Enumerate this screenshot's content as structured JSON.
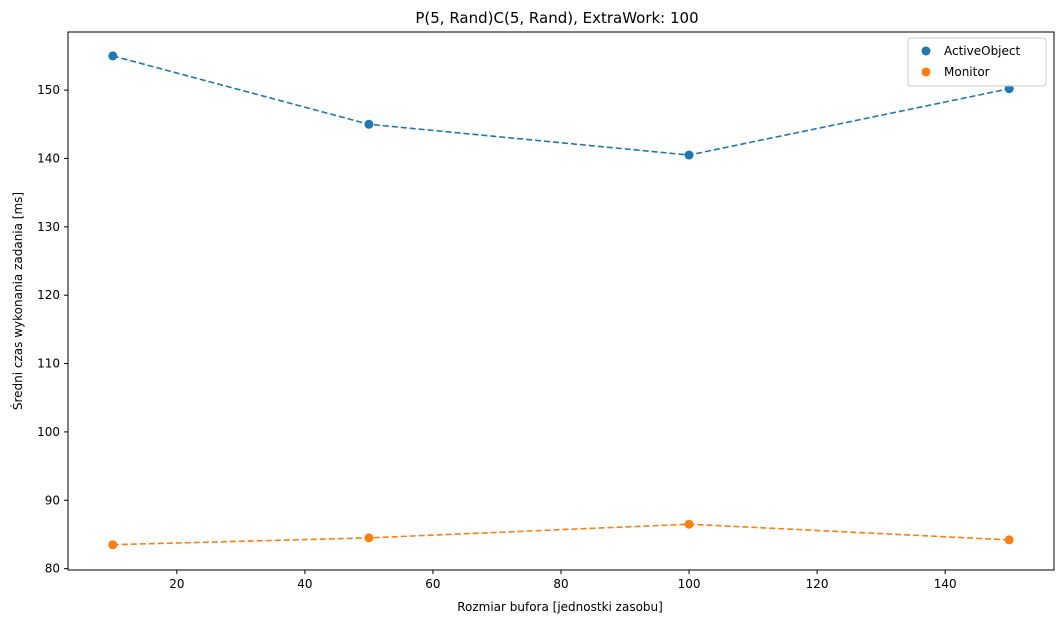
{
  "chart_data": {
    "type": "line",
    "title": "P(5, Rand)C(5, Rand), ExtraWork: 100",
    "xlabel": "Rozmiar bufora [jednostki zasobu]",
    "ylabel": "Średni czas wykonania zadania [ms]",
    "x": [
      10,
      50,
      100,
      150
    ],
    "xlim": [
      3,
      157
    ],
    "ylim": [
      79.8,
      158.5
    ],
    "xticks": [
      20,
      40,
      60,
      80,
      100,
      120,
      140
    ],
    "yticks": [
      80,
      90,
      100,
      110,
      120,
      130,
      140,
      150
    ],
    "grid": false,
    "legend_position": "top-right",
    "series": [
      {
        "name": "ActiveObject",
        "values": [
          155.0,
          145.0,
          140.5,
          150.2
        ],
        "color": "#1f77b4"
      },
      {
        "name": "Monitor",
        "values": [
          83.5,
          84.5,
          86.5,
          84.2
        ],
        "color": "#ff7f0e"
      }
    ]
  }
}
